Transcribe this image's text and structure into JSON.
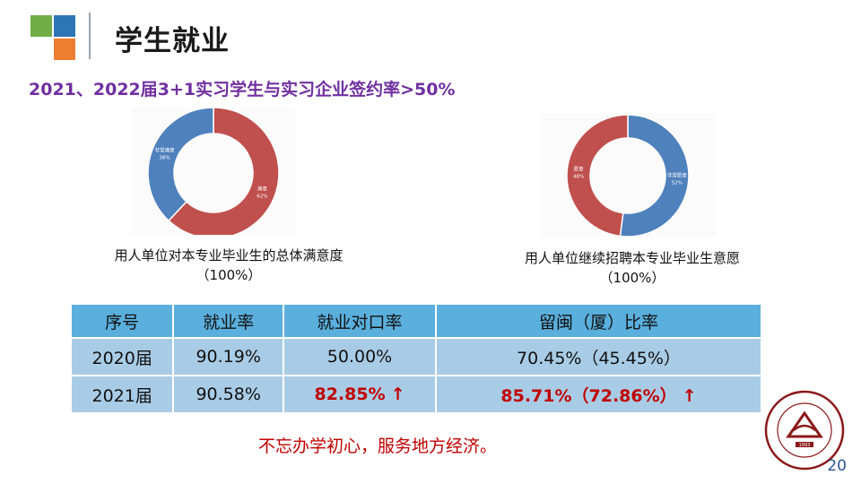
{
  "header": {
    "title": "学生就业",
    "logo_colors": {
      "blue": "#2e75b6",
      "green": "#70ad47",
      "orange": "#ed7d31"
    }
  },
  "subtitle": "2021、2022届3+1实习学生与实习企业签约率>50%",
  "charts": {
    "satisfaction": {
      "caption_line1": "用人单位对本专业毕业生的总体满意度",
      "caption_line2": "（100%）",
      "slices": [
        {
          "label": "满意, 62%",
          "value": 62,
          "color": "#c0504d"
        },
        {
          "label": "非常满意, 38%",
          "value": 38,
          "color": "#4f81bd"
        }
      ]
    },
    "rehire": {
      "caption_line1": "用人单位继续招聘本专业毕业生意愿",
      "caption_line2": "（100%）",
      "slices": [
        {
          "label": "非常愿意, 52%",
          "value": 52,
          "color": "#4f81bd"
        },
        {
          "label": "愿意, 48%",
          "value": 48,
          "color": "#c0504d"
        }
      ]
    }
  },
  "table": {
    "headers": [
      "序号",
      "就业率",
      "就业对口率",
      "留闽（厦）比率"
    ],
    "rows": [
      [
        "2020届",
        "90.19%",
        "50.00%",
        "70.45%（45.45%）"
      ],
      [
        "2021届",
        "90.58%",
        "82.85%",
        "85.71%（72.86%）"
      ]
    ],
    "arrow": "↑"
  },
  "motto": "不忘办学初心，服务地方经济。",
  "page_number": "20",
  "emblem": {
    "text": "厦门华厦学院",
    "english": "Xiamen Huaxia University",
    "year": "1993"
  }
}
